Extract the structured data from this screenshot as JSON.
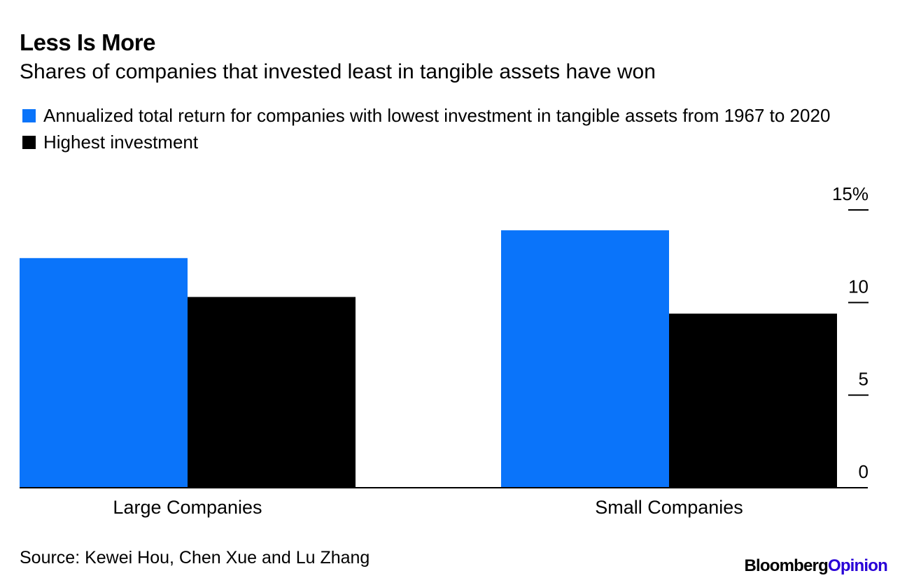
{
  "header": {
    "title": "Less Is More",
    "subtitle": "Shares of companies that invested least in tangible assets have won"
  },
  "legend": [
    {
      "label": "Annualized total return for companies with lowest investment in tangible assets from 1967 to 2020",
      "color": "#0a74fa"
    },
    {
      "label": "Highest investment",
      "color": "#000000"
    }
  ],
  "chart_data": {
    "type": "bar",
    "categories": [
      "Large Companies",
      "Small Companies"
    ],
    "series": [
      {
        "name": "Annualized total return for companies with lowest investment in tangible assets from 1967 to 2020",
        "values": [
          12.4,
          13.9
        ],
        "color": "#0a74fa"
      },
      {
        "name": "Highest investment",
        "values": [
          10.3,
          9.4
        ],
        "color": "#000000"
      }
    ],
    "yticks": [
      "0",
      "5",
      "10",
      "15%"
    ],
    "ytick_values": [
      0,
      5,
      10,
      15
    ],
    "ylim": [
      0,
      15
    ],
    "y_axis_side": "right",
    "title": "Less Is More",
    "subtitle": "Shares of companies that invested least in tangible assets have won"
  },
  "footer": {
    "source": "Source: Kewei Hou, Chen Xue and Lu Zhang",
    "brand_part1": "Bloomberg",
    "brand_part2": "Opinion"
  }
}
